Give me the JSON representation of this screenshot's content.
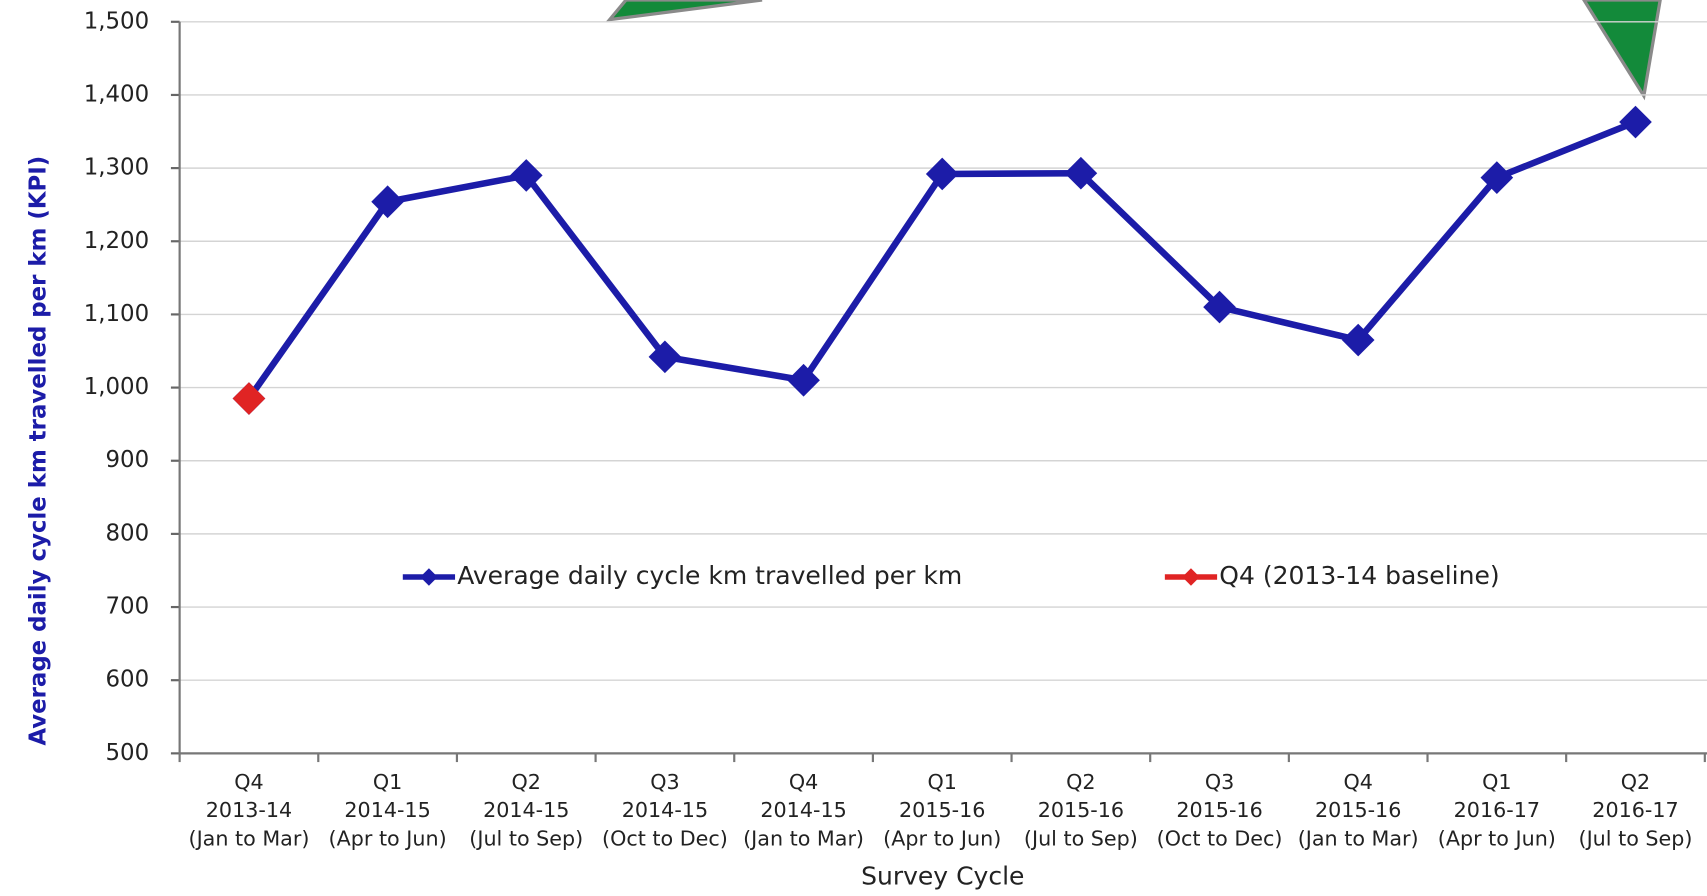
{
  "chart_data": {
    "type": "line",
    "x_label": "Survey Cycle",
    "y_label": "Average daily cycle km travelled per km (KPI)",
    "categories": [
      [
        "Q4",
        "2013-14",
        "(Jan to Mar)"
      ],
      [
        "Q1",
        "2014-15",
        "(Apr to Jun)"
      ],
      [
        "Q2",
        "2014-15",
        "(Jul to Sep)"
      ],
      [
        "Q3",
        "2014-15",
        "(Oct to Dec)"
      ],
      [
        "Q4",
        "2014-15",
        "(Jan to Mar)"
      ],
      [
        "Q1",
        "2015-16",
        "(Apr to Jun)"
      ],
      [
        "Q2",
        "2015-16",
        "(Jul to Sep)"
      ],
      [
        "Q3",
        "2015-16",
        "(Oct to Dec)"
      ],
      [
        "Q4",
        "2015-16",
        "(Jan to Mar)"
      ],
      [
        "Q1",
        "2016-17",
        "(Apr to Jun)"
      ],
      [
        "Q2",
        "2016-17",
        "(Jul to Sep)"
      ]
    ],
    "series": [
      {
        "name": "Average daily cycle km travelled per km",
        "color": "#1c1ca8",
        "values": [
          985,
          1254,
          1290,
          1042,
          1010,
          1292,
          1293,
          1110,
          1065,
          1287,
          1363
        ]
      },
      {
        "name": "Q4 (2013-14 baseline)",
        "color": "#e02424",
        "values": [
          985,
          null,
          null,
          null,
          null,
          null,
          null,
          null,
          null,
          null,
          null
        ]
      }
    ],
    "ylim": [
      500,
      1500
    ],
    "yticks": [
      500,
      600,
      700,
      800,
      900,
      {
        "value": 1000,
        "label": "1,000"
      },
      {
        "value": 1100,
        "label": "1,100"
      },
      {
        "value": 1200,
        "label": "1,200"
      },
      {
        "value": 1300,
        "label": "1,300"
      },
      {
        "value": 1400,
        "label": "1,400"
      },
      {
        "value": 1500,
        "label": "1,500"
      }
    ],
    "grid": true,
    "legend": "center"
  }
}
